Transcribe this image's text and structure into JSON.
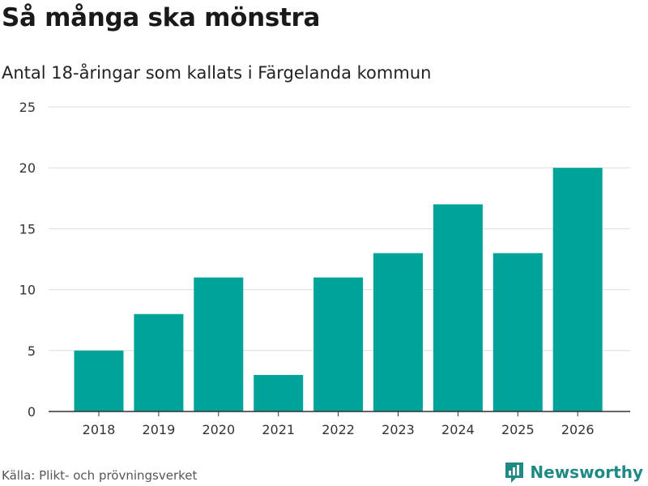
{
  "title": "Så många ska mönstra",
  "subtitle": "Antal 18-åringar som kallats i Färgelanda kommun",
  "source": "Källa: Plikt- och prövningsverket",
  "brand": "Newsworthy",
  "colors": {
    "bar": "#00a398",
    "grid": "#dddddd",
    "axis": "#333333",
    "brand": "#1f8a84"
  },
  "chart_data": {
    "type": "bar",
    "categories": [
      "2018",
      "2019",
      "2020",
      "2021",
      "2022",
      "2023",
      "2024",
      "2025",
      "2026"
    ],
    "values": [
      5,
      8,
      11,
      3,
      11,
      13,
      17,
      13,
      20
    ],
    "yticks": [
      0,
      5,
      10,
      15,
      20,
      25
    ],
    "ylim": [
      0,
      25
    ],
    "xlabel": "",
    "ylabel": "",
    "title": "Så många ska mönstra",
    "grid": true
  }
}
